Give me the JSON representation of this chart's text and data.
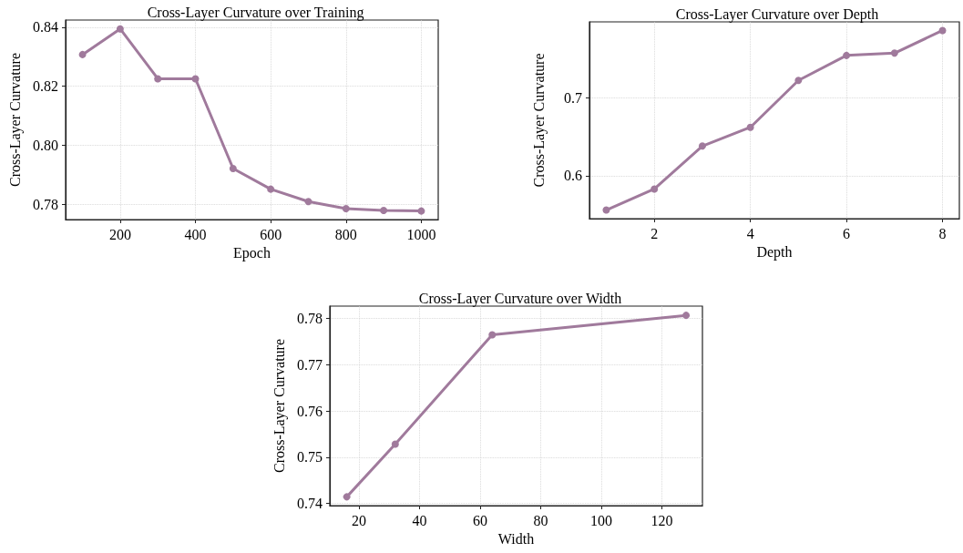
{
  "chart_data": [
    {
      "type": "line",
      "title": "Cross-Layer Curvature over Training",
      "xlabel": "Epoch",
      "ylabel": "Cross-Layer Curvature",
      "x": [
        100,
        200,
        300,
        400,
        500,
        600,
        700,
        800,
        900,
        1000
      ],
      "series": [
        {
          "color": "#a07a9c",
          "values": [
            0.8307,
            0.8394,
            0.8225,
            0.8225,
            0.7921,
            0.7851,
            0.7809,
            0.7785,
            0.7779,
            0.7777
          ]
        }
      ],
      "xlim": [
        55,
        1045
      ],
      "xticks": [
        200,
        400,
        600,
        800,
        1000
      ],
      "ylim": [
        0.7748,
        0.8424
      ],
      "yticks": [
        0.78,
        {
          "value": 0.8,
          "label": "0.80"
        },
        0.82,
        0.84
      ],
      "grid": true,
      "marker": "circle",
      "line_style": "solid"
    },
    {
      "type": "line",
      "title": "Cross-Layer Curvature over Depth",
      "xlabel": "Depth",
      "ylabel": "Cross-Layer Curvature",
      "x": [
        1,
        2,
        3,
        4,
        5,
        6,
        7,
        8
      ],
      "series": [
        {
          "color": "#a07a9c",
          "values": [
            0.556,
            0.583,
            0.638,
            0.662,
            0.722,
            0.754,
            0.757,
            0.786
          ]
        }
      ],
      "xlim": [
        0.65,
        8.35
      ],
      "xticks": [
        2,
        4,
        6,
        8
      ],
      "ylim": [
        0.545,
        0.797
      ],
      "yticks": [
        0.6,
        0.7
      ],
      "grid": true,
      "marker": "circle",
      "line_style": "solid"
    },
    {
      "type": "line",
      "title": "Cross-Layer Curvature over Width",
      "xlabel": "Width",
      "ylabel": "Cross-Layer Curvature",
      "x": [
        16,
        32,
        64,
        128
      ],
      "series": [
        {
          "color": "#a07a9c",
          "values": [
            0.7414,
            0.7528,
            0.7765,
            0.7807
          ]
        }
      ],
      "xlim": [
        10.4,
        133.4
      ],
      "xticks": [
        20,
        40,
        60,
        80,
        100,
        120
      ],
      "ylim": [
        0.7395,
        0.7827
      ],
      "yticks": [
        0.74,
        0.75,
        0.76,
        0.77,
        0.78
      ],
      "grid": true,
      "marker": "circle",
      "line_style": "solid"
    }
  ]
}
